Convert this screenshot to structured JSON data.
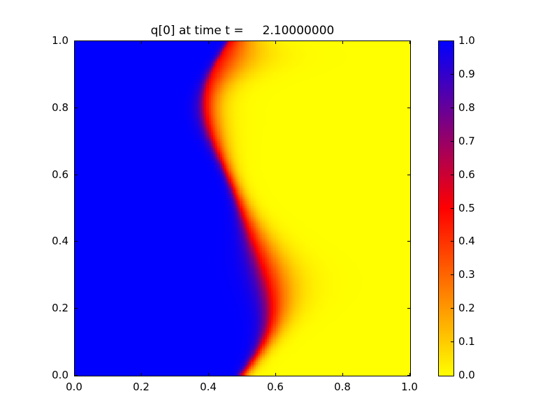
{
  "chart_data": {
    "type": "heatmap",
    "title": "q[0] at time t =     2.10000000",
    "xlabel": "",
    "ylabel": "",
    "xlim": [
      0.0,
      1.0
    ],
    "ylim": [
      0.0,
      1.0
    ],
    "x_tick_values": [
      0.0,
      0.2,
      0.4,
      0.6,
      0.8,
      1.0
    ],
    "x_tick_labels": [
      "0.0",
      "0.2",
      "0.4",
      "0.6",
      "0.8",
      "1.0"
    ],
    "y_tick_values": [
      0.0,
      0.2,
      0.4,
      0.6,
      0.8,
      1.0
    ],
    "y_tick_labels": [
      "0.0",
      "0.2",
      "0.4",
      "0.6",
      "0.8",
      "1.0"
    ],
    "grid": {
      "nx": 150,
      "ny": 150
    },
    "field": {
      "description": "q = smoothed step: 1 (blue) left of a sine-shaped interface, 0 (yellow) right of it",
      "q_left": 1.0,
      "q_right": 0.0,
      "interface": {
        "base": 0.5,
        "amp1": 0.085,
        "amp2": 0.015,
        "tilt": -0.035
      },
      "width_blue": {
        "base": 0.006,
        "bumps": [
          {
            "amp": 0.016,
            "mu": 0.28,
            "sigma": 0.18
          },
          {
            "amp": 0.007,
            "mu": 0.78,
            "sigma": 0.14
          }
        ]
      },
      "width_yellow": {
        "base": 0.011,
        "bumps": [
          {
            "amp": 0.03,
            "mu": 0.3,
            "sigma": 0.17
          },
          {
            "amp": 0.013,
            "mu": 0.78,
            "sigma": 0.14
          },
          {
            "amp": 0.04,
            "mu": 0.95,
            "sigma": 0.085
          }
        ]
      }
    },
    "colormap": {
      "name": "yellow_red_blue",
      "stops": [
        {
          "v": 0.0,
          "color": "#ffff00"
        },
        {
          "v": 0.5,
          "color": "#ff0000"
        },
        {
          "v": 1.0,
          "color": "#0000ff"
        }
      ]
    },
    "colorbar": {
      "vmin": 0.0,
      "vmax": 1.0,
      "tick_values": [
        0.0,
        0.1,
        0.2,
        0.3,
        0.4,
        0.5,
        0.6,
        0.7,
        0.8,
        0.9,
        1.0
      ],
      "tick_labels": [
        "0.0",
        "0.1",
        "0.2",
        "0.3",
        "0.4",
        "0.5",
        "0.6",
        "0.7",
        "0.8",
        "0.9",
        "1.0"
      ]
    },
    "layout": {
      "figure_width": 800,
      "figure_height": 600,
      "axes_left": 106,
      "axes_top": 58,
      "axes_width": 482,
      "axes_height": 481,
      "title_top": 34,
      "cbar_left": 627,
      "cbar_top": 58,
      "cbar_width": 23,
      "cbar_height": 481,
      "tick_length": 4,
      "frame_color": "#000000",
      "background": "#ffffff"
    }
  }
}
